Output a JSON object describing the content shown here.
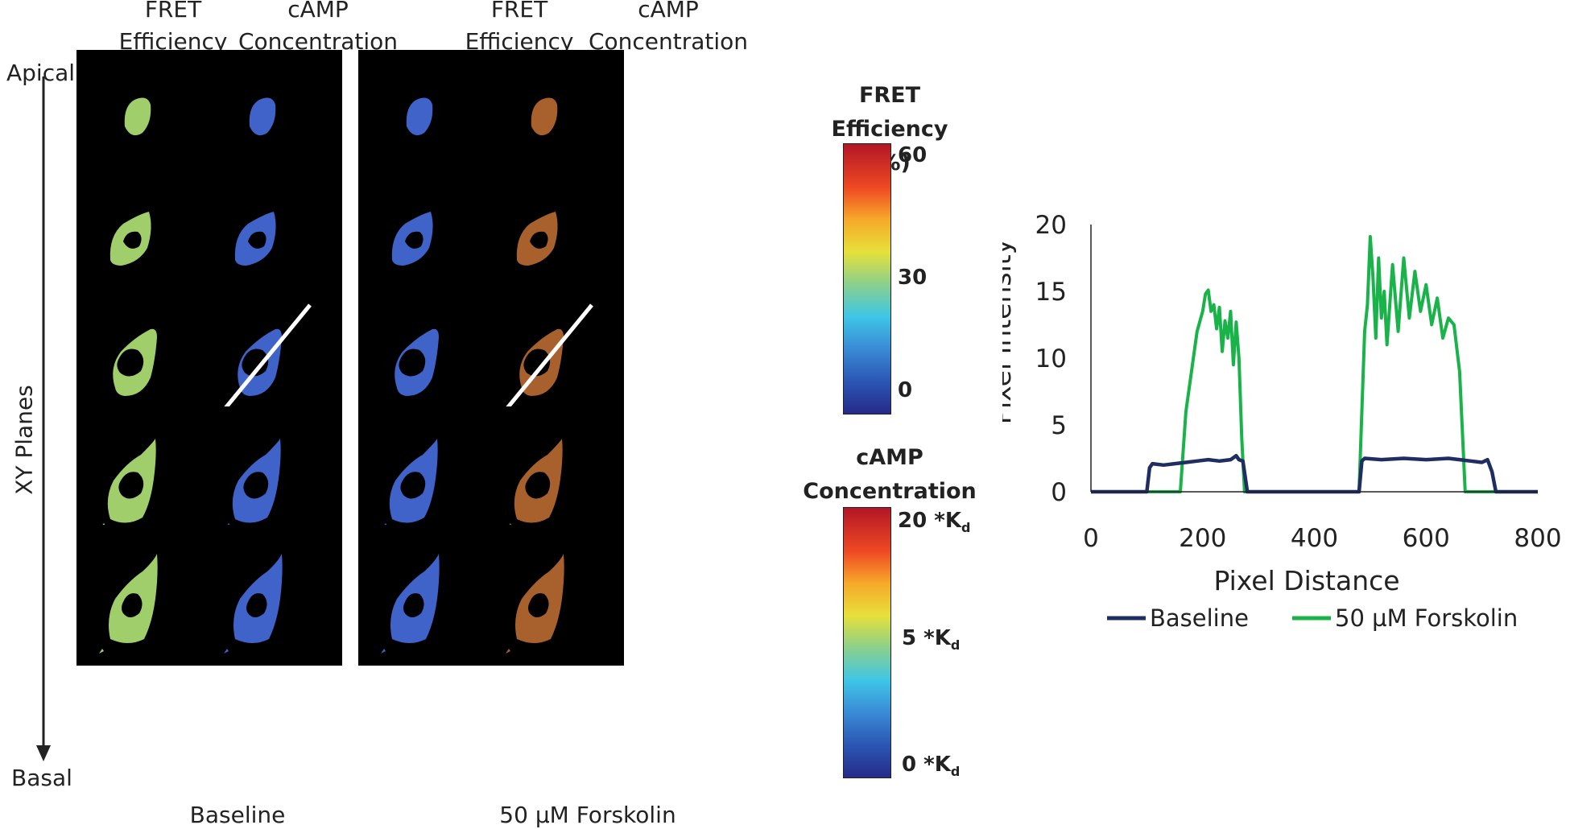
{
  "panel_headers": {
    "baseline": {
      "fret": [
        "FRET",
        "Efficiency"
      ],
      "camp": [
        "cAMP",
        "Concentration"
      ]
    },
    "forskolin": {
      "fret": [
        "FRET",
        "Efficiency"
      ],
      "camp": [
        "cAMP",
        "Concentration"
      ]
    }
  },
  "side_labels": {
    "apical": "Apical",
    "xy_planes": "XY Planes",
    "basal": "Basal"
  },
  "group_labels": {
    "baseline": "Baseline",
    "forskolin": "50 µM Forskolin"
  },
  "colorbars": {
    "fret": {
      "title": [
        "FRET",
        "Efficiency (%)"
      ],
      "ticks": [
        "60",
        "30",
        "0"
      ]
    },
    "camp": {
      "title": [
        "cAMP",
        "Concentration"
      ],
      "ticks": [
        "20 *K",
        "5 *K",
        "0 *K"
      ],
      "tick_subscript": "d"
    }
  },
  "colors": {
    "baseline_line": "#1f2d63",
    "forskolin_line": "#19b34a",
    "cell_fret_baseline": "#9fce6a",
    "cell_camp_baseline": "#3f63c9",
    "cell_fret_forskolin": "#3f63c9",
    "cell_camp_forskolin": "#a8612c"
  },
  "chart_data": {
    "type": "line",
    "xlabel": "Pixel Distance",
    "ylabel": "Pixel Intensity",
    "xlim": [
      0,
      800
    ],
    "ylim": [
      0,
      20
    ],
    "x_ticks": [
      "0",
      "200",
      "400",
      "600",
      "800"
    ],
    "y_ticks": [
      "0",
      "5",
      "10",
      "15",
      "20"
    ],
    "legend_position": "bottom",
    "series": [
      {
        "name": "Baseline",
        "x": [
          0,
          100,
          105,
          110,
          130,
          150,
          170,
          190,
          210,
          230,
          250,
          260,
          265,
          272,
          280,
          480,
          485,
          490,
          520,
          560,
          600,
          640,
          660,
          680,
          700,
          710,
          718,
          725,
          800
        ],
        "y": [
          0,
          0,
          1.8,
          2.1,
          2.0,
          2.1,
          2.2,
          2.3,
          2.4,
          2.3,
          2.4,
          2.7,
          2.4,
          2.3,
          0,
          0,
          2.3,
          2.5,
          2.4,
          2.5,
          2.4,
          2.5,
          2.4,
          2.3,
          2.2,
          2.4,
          1.5,
          0,
          0
        ]
      },
      {
        "name": "50 µM Forskolin",
        "x": [
          0,
          160,
          170,
          180,
          190,
          200,
          205,
          210,
          215,
          220,
          225,
          230,
          235,
          240,
          245,
          250,
          255,
          260,
          265,
          270,
          275,
          480,
          490,
          495,
          500,
          505,
          510,
          515,
          520,
          525,
          530,
          540,
          550,
          560,
          570,
          580,
          590,
          600,
          610,
          620,
          630,
          640,
          650,
          660,
          670,
          800
        ],
        "y": [
          0,
          0,
          6,
          9,
          12,
          13.5,
          14.8,
          15.1,
          13.5,
          14,
          12.2,
          13.8,
          10.5,
          12.8,
          11.5,
          13.5,
          9.5,
          12.7,
          10,
          4,
          0,
          0,
          12,
          14,
          19.1,
          16,
          11.5,
          17.5,
          13,
          15,
          11,
          17,
          12,
          17.5,
          13,
          16.5,
          13.5,
          15.5,
          12.5,
          14.5,
          11.5,
          13,
          12.5,
          9,
          0,
          0
        ]
      }
    ]
  }
}
